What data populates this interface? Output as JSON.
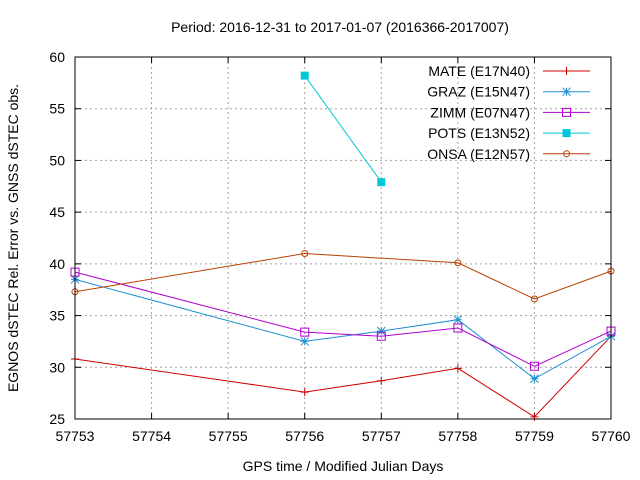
{
  "chart_data": {
    "type": "line",
    "title": "Period: 2016-12-31 to 2017-01-07 (2016366-2017007)",
    "xlabel": "GPS time / Modified Julian Days",
    "ylabel": "EGNOS dSTEC Rel. Error vs. GNSS dSTEC obs.",
    "xlim": [
      57753,
      57760
    ],
    "ylim": [
      25,
      60
    ],
    "xticks": [
      "57753",
      "57754",
      "57755",
      "57756",
      "57757",
      "57758",
      "57759",
      "57760"
    ],
    "yticks": [
      "25",
      "30",
      "35",
      "40",
      "45",
      "50",
      "55",
      "60"
    ],
    "grid": true,
    "legend_position": "top-right",
    "series": [
      {
        "name": "MATE (E17N40)",
        "color": "#cc0000",
        "marker": "plus",
        "x": [
          57753,
          57756,
          57757,
          57758,
          57759,
          57760
        ],
        "values": [
          30.8,
          27.6,
          28.7,
          29.9,
          25.2,
          33.0
        ]
      },
      {
        "name": "GRAZ (E15N47)",
        "color": "#1e90d0",
        "marker": "star",
        "x": [
          57753,
          57756,
          57757,
          57758,
          57759,
          57760
        ],
        "values": [
          38.5,
          32.5,
          33.5,
          34.6,
          28.9,
          33.0
        ]
      },
      {
        "name": "ZIMM (E07N47)",
        "color": "#b000d0",
        "marker": "square-open",
        "x": [
          57753,
          57756,
          57757,
          57758,
          57759,
          57760
        ],
        "values": [
          39.2,
          33.4,
          33.0,
          33.8,
          30.1,
          33.5
        ]
      },
      {
        "name": "POTS (E13N52)",
        "color": "#00c8d8",
        "marker": "square-filled",
        "x": [
          57756,
          57757
        ],
        "values": [
          58.2,
          47.9
        ]
      },
      {
        "name": "ONSA (E12N57)",
        "color": "#b84000",
        "marker": "circle-open",
        "x": [
          57753,
          57756,
          57758,
          57759,
          57760
        ],
        "values": [
          37.3,
          41.0,
          40.1,
          36.6,
          39.3
        ]
      }
    ]
  }
}
